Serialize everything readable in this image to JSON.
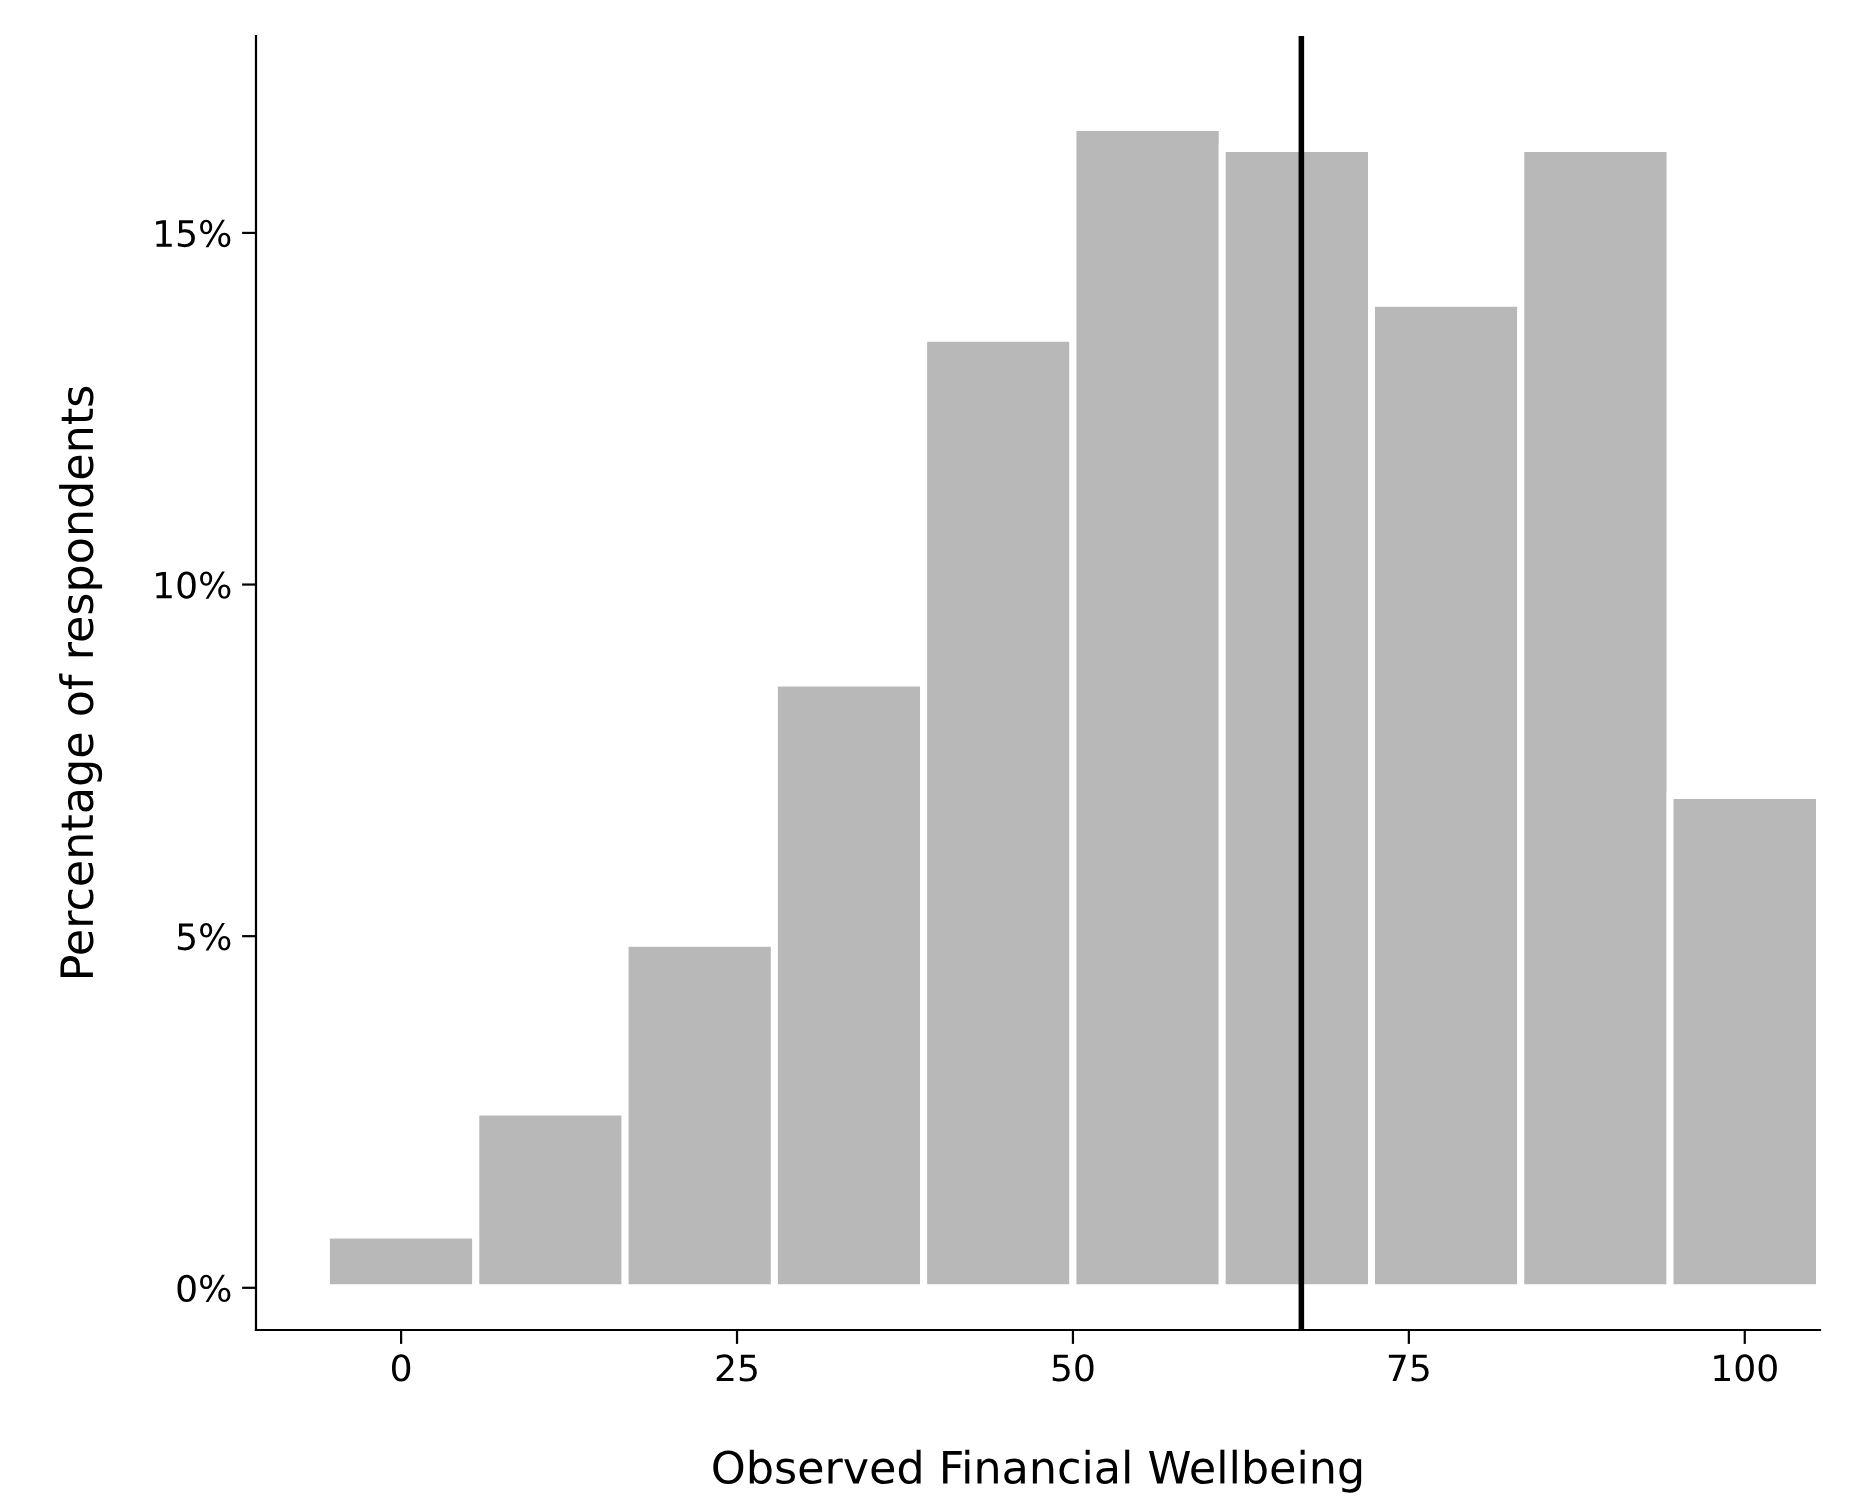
{
  "chart_data": {
    "type": "histogram",
    "xlabel": "Observed Financial Wellbeing",
    "ylabel": "Percentage of respondents",
    "bins": [
      -5.56,
      5.56,
      16.67,
      27.78,
      38.89,
      50,
      61.11,
      72.22,
      83.33,
      94.44,
      105.56
    ],
    "values": [
      0.75,
      2.5,
      4.9,
      8.6,
      13.5,
      16.5,
      16.2,
      14.0,
      16.2,
      7.0
    ],
    "color": "#b8b8b8",
    "xlim": [
      -10.8,
      105.6
    ],
    "xticks": [
      0,
      25,
      50,
      75,
      100
    ],
    "ylim": [
      -0.6,
      17.8
    ],
    "yticks": [
      {
        "value": 0,
        "label": "0%"
      },
      {
        "value": 5,
        "label": "5%"
      },
      {
        "value": 10,
        "label": "10%"
      },
      {
        "value": 15,
        "label": "15%"
      }
    ],
    "ref_lines": [
      {
        "axis": "x",
        "value": 67,
        "color": "#000000"
      }
    ],
    "grid": false,
    "legend": false
  }
}
